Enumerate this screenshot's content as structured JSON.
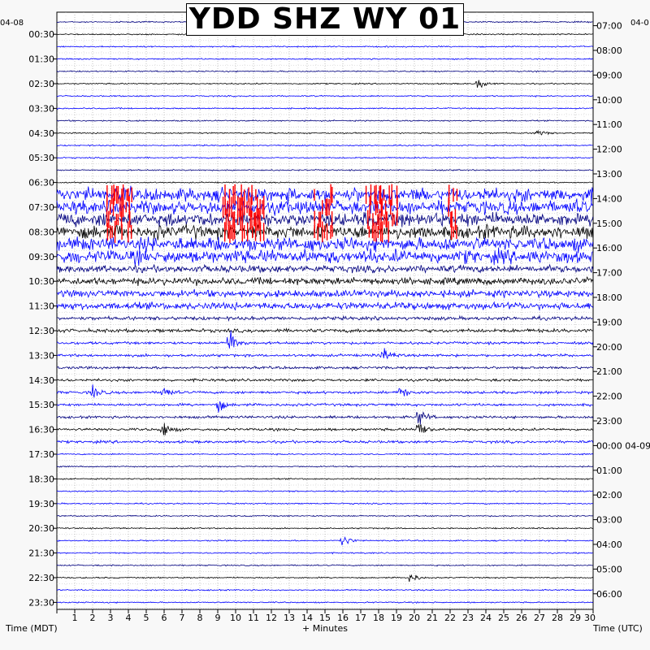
{
  "chart_data": {
    "type": "line",
    "title": "YDD SHZ WY 01",
    "xlabel": "+ Minutes",
    "left_axis_label": "Time (MDT)",
    "right_axis_label": "Time (UTC)",
    "left_date": "04-08",
    "right_date": "04-0",
    "right_date_change": "04-09",
    "x_ticks": [
      "1",
      "2",
      "3",
      "4",
      "5",
      "6",
      "7",
      "8",
      "9",
      "10",
      "11",
      "12",
      "13",
      "14",
      "15",
      "16",
      "17",
      "18",
      "19",
      "20",
      "21",
      "22",
      "23",
      "24",
      "25",
      "26",
      "27",
      "28",
      "29",
      "30"
    ],
    "xlim": [
      0,
      30
    ],
    "left_tick_labels": [
      "00:30",
      "01:30",
      "02:30",
      "03:30",
      "04:30",
      "05:30",
      "06:30",
      "07:30",
      "08:30",
      "09:30",
      "10:30",
      "11:30",
      "12:30",
      "13:30",
      "14:30",
      "15:30",
      "16:30",
      "17:30",
      "18:30",
      "19:30",
      "20:30",
      "21:30",
      "22:30",
      "23:30"
    ],
    "right_tick_labels": [
      "07:00",
      "08:00",
      "09:00",
      "10:00",
      "11:00",
      "12:00",
      "13:00",
      "14:00",
      "15:00",
      "16:00",
      "17:00",
      "18:00",
      "19:00",
      "20:00",
      "21:00",
      "22:00",
      "23:00",
      "00:00 04-09",
      "01:00",
      "02:00",
      "03:00",
      "04:00",
      "05:00",
      "06:00"
    ],
    "trace_count": 48,
    "trace_colors": [
      "#00007f",
      "#000000",
      "#ff0000",
      "#0000ff"
    ],
    "clip_color": "#ff0000",
    "events": [
      {
        "row": 1,
        "minute": 11.9,
        "amp": 10
      },
      {
        "row": 5,
        "minute": 23.6,
        "amp": 12
      },
      {
        "row": 9,
        "minute": 26.9,
        "amp": 8
      },
      {
        "row": 26,
        "minute": 9.7,
        "amp": 28
      },
      {
        "row": 27,
        "minute": 18.3,
        "amp": 14
      },
      {
        "row": 30,
        "minute": 2.0,
        "amp": 14
      },
      {
        "row": 30,
        "minute": 6.0,
        "amp": 12
      },
      {
        "row": 30,
        "minute": 19.3,
        "amp": 12
      },
      {
        "row": 31,
        "minute": 9.0,
        "amp": 14
      },
      {
        "row": 32,
        "minute": 20.3,
        "amp": 16
      },
      {
        "row": 33,
        "minute": 6.0,
        "amp": 14
      },
      {
        "row": 33,
        "minute": 20.3,
        "amp": 18
      },
      {
        "row": 42,
        "minute": 16.0,
        "amp": 14
      },
      {
        "row": 45,
        "minute": 19.8,
        "amp": 12
      }
    ]
  }
}
